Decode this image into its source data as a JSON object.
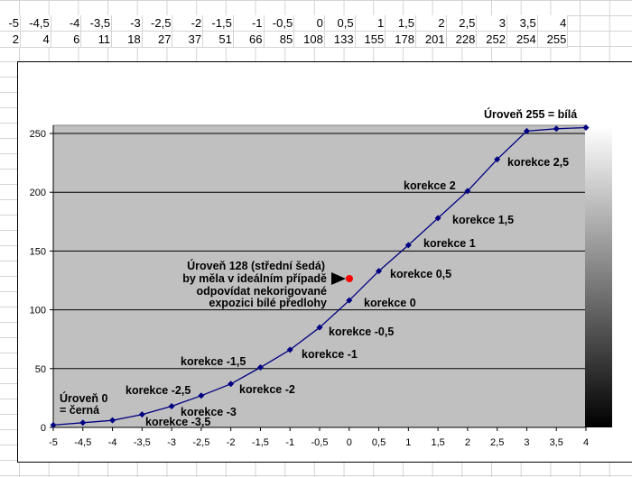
{
  "spreadsheet": {
    "row_exposure": [
      "-5",
      "-4,5",
      "-4",
      "-3,5",
      "-3",
      "-2,5",
      "-2",
      "-1,5",
      "-1",
      "-0,5",
      "0",
      "0,5",
      "1",
      "1,5",
      "2",
      "2,5",
      "3",
      "3,5",
      "4"
    ],
    "row_level": [
      "2",
      "4",
      "6",
      "11",
      "18",
      "27",
      "37",
      "51",
      "66",
      "85",
      "108",
      "133",
      "155",
      "178",
      "201",
      "228",
      "252",
      "254",
      "255"
    ]
  },
  "chart_data": {
    "type": "line",
    "x": [
      -5,
      -4.5,
      -4,
      -3.5,
      -3,
      -2.5,
      -2,
      -1.5,
      -1,
      -0.5,
      0,
      0.5,
      1,
      1.5,
      2,
      2.5,
      3,
      3.5,
      4
    ],
    "series": [
      {
        "values": [
          2,
          4,
          6,
          11,
          18,
          27,
          37,
          51,
          66,
          85,
          108,
          133,
          155,
          178,
          201,
          228,
          252,
          254,
          255
        ]
      }
    ],
    "xlim": [
      -5,
      4
    ],
    "ylim": [
      0,
      255
    ],
    "xticks": [
      "-5",
      "-4,5",
      "-4",
      "-3,5",
      "-3",
      "-2,5",
      "-2",
      "-1,5",
      "-1",
      "-0,5",
      "0",
      "0,5",
      "1",
      "1,5",
      "2",
      "2,5",
      "3",
      "3,5",
      "4"
    ],
    "yticks": [
      "0",
      "50",
      "100",
      "150",
      "200",
      "250"
    ],
    "grid": "horizontal",
    "plot_background": "#c0c0c0",
    "line_color": "#000080",
    "annotations": {
      "top": "Úroveň 255 = bílá",
      "bottom_line1": "Úroveň 0",
      "bottom_line2": "= černá",
      "mid_line1": "Úroveň 128 (střední šedá)",
      "mid_line2": "by měla v ideálním případě",
      "mid_line3": "odpovídat nekorigované",
      "mid_line4": "expozici bílé předlohy",
      "korekce": {
        "k2_5": "korekce 2,5",
        "k2": "korekce 2",
        "k1_5": "korekce 1,5",
        "k1": "korekce 1",
        "k0_5": "korekce 0,5",
        "k0": "korekce 0",
        "km0_5": "korekce -0,5",
        "km1": "korekce -1",
        "km1_5": "korekce -1,5",
        "km2": "korekce -2",
        "km2_5": "korekce -2,5",
        "km3": "korekce -3",
        "km3_5": "korekce -3,5"
      }
    },
    "marker_color": "#ff0000"
  }
}
